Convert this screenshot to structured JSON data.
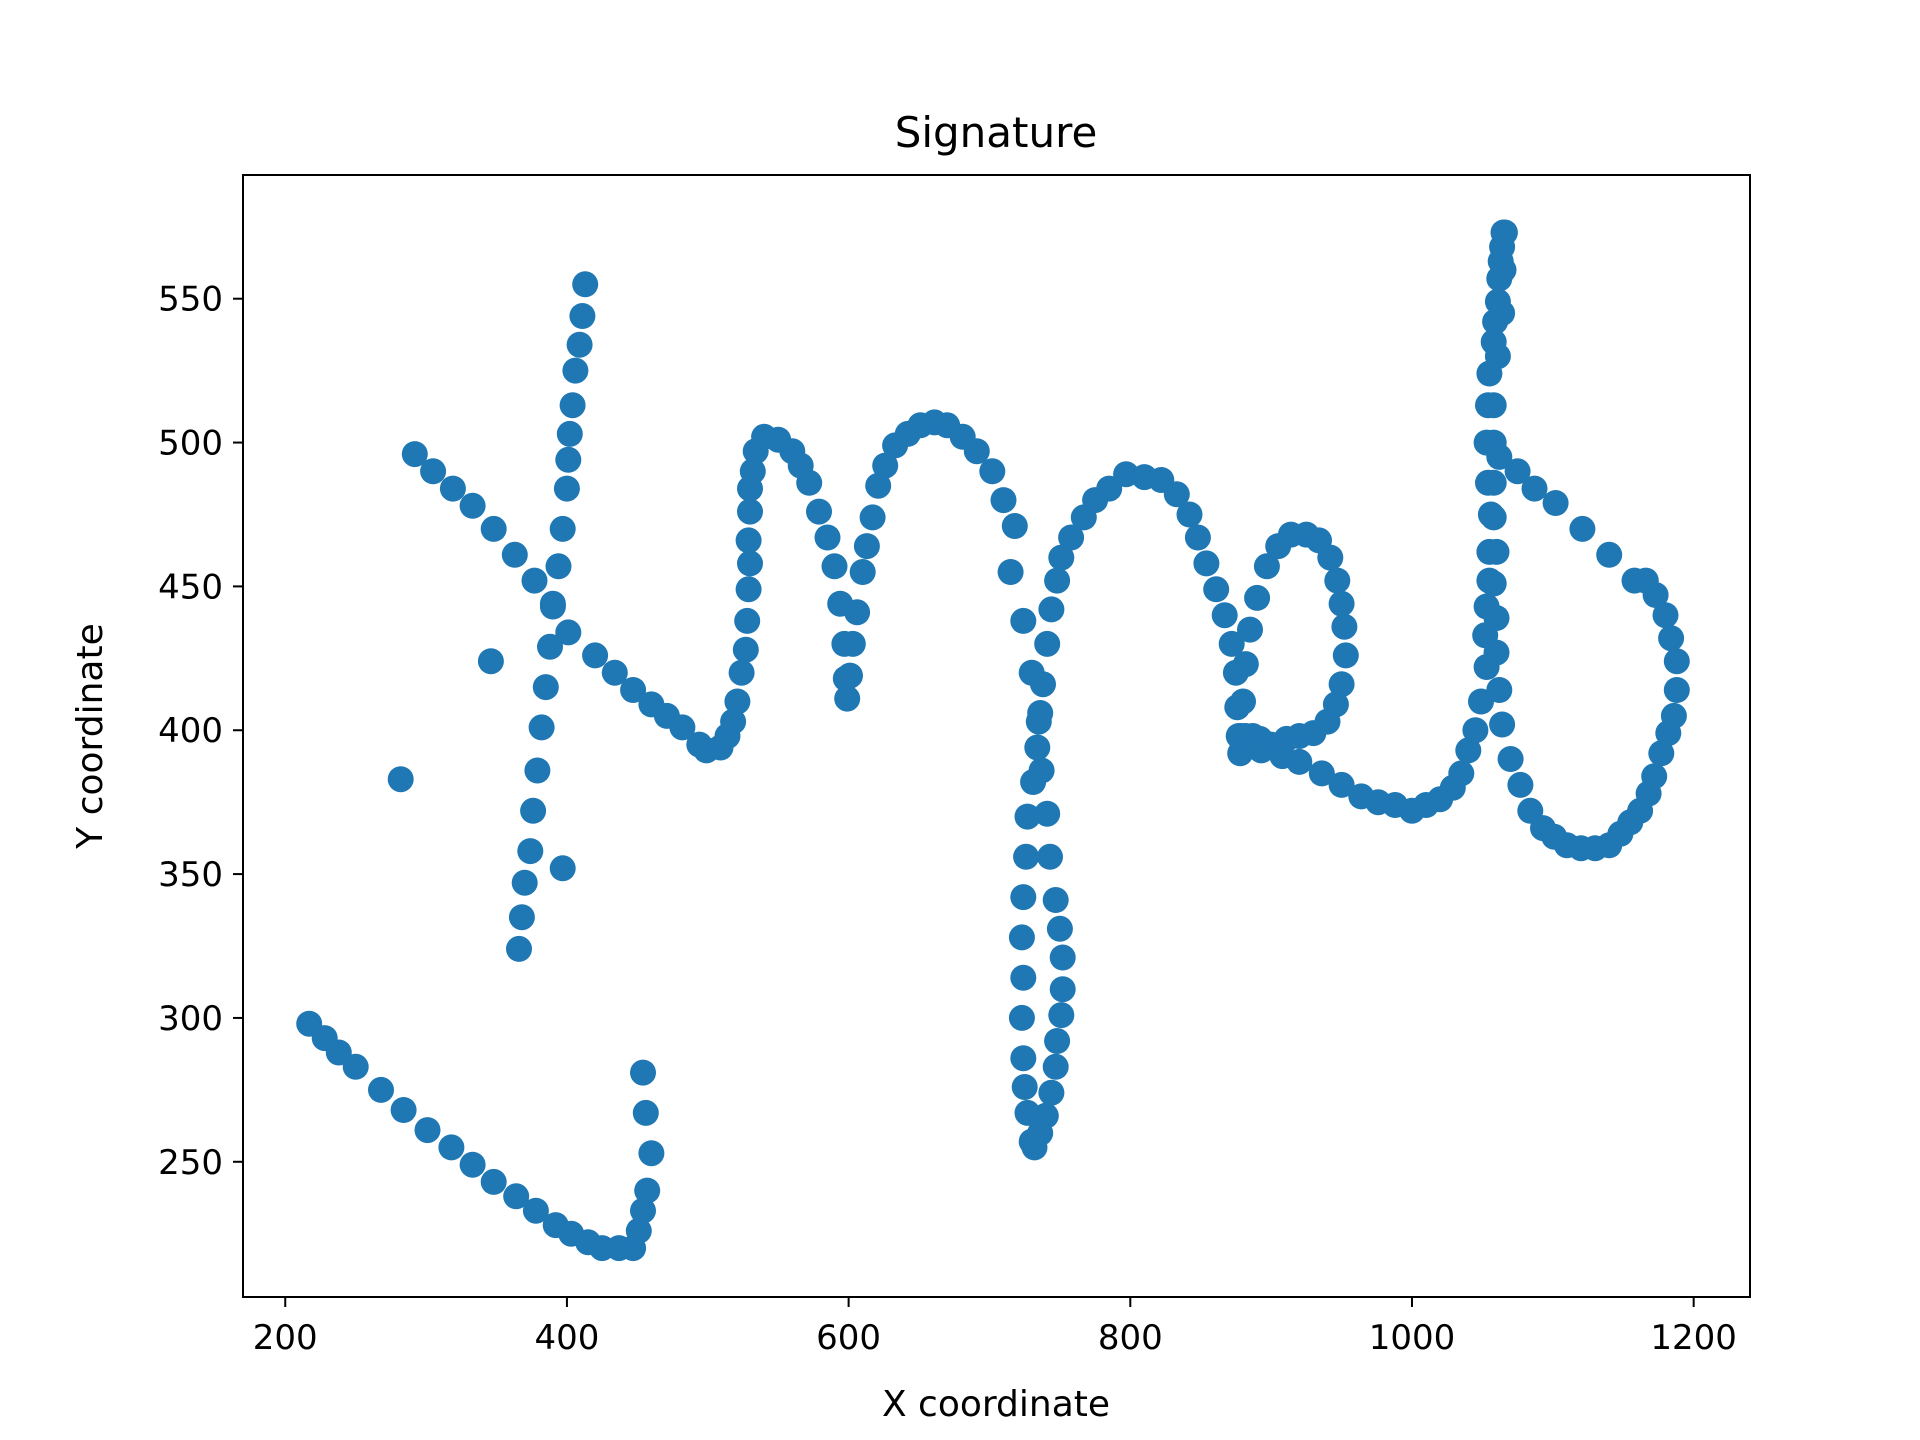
{
  "chart_data": {
    "type": "scatter",
    "title": "Signature",
    "xlabel": "X coordinate",
    "ylabel": "Y coordinate",
    "xlim": [
      170,
      1240
    ],
    "ylim": [
      203,
      593
    ],
    "xticks": [
      200,
      400,
      600,
      800,
      1000,
      1200
    ],
    "yticks": [
      250,
      300,
      350,
      400,
      450,
      500,
      550
    ],
    "grid": false,
    "legend": "none",
    "marker_color": "#1f77b4",
    "series": [
      {
        "values": [
          [
            217,
            298
          ],
          [
            228,
            293
          ],
          [
            238,
            288
          ],
          [
            250,
            283
          ],
          [
            268,
            275
          ],
          [
            284,
            268
          ],
          [
            301,
            261
          ],
          [
            318,
            255
          ],
          [
            333,
            249
          ],
          [
            348,
            243
          ],
          [
            364,
            238
          ],
          [
            378,
            233
          ],
          [
            392,
            228
          ],
          [
            403,
            225
          ],
          [
            415,
            222
          ],
          [
            425,
            220
          ],
          [
            437,
            220
          ],
          [
            447,
            220
          ],
          [
            451,
            226
          ],
          [
            454,
            233
          ],
          [
            457,
            240
          ],
          [
            460,
            253
          ],
          [
            456,
            267
          ],
          [
            454,
            281
          ],
          [
            292,
            496
          ],
          [
            305,
            490
          ],
          [
            319,
            484
          ],
          [
            333,
            478
          ],
          [
            348,
            470
          ],
          [
            363,
            461
          ],
          [
            377,
            452
          ],
          [
            390,
            444
          ],
          [
            401,
            434
          ],
          [
            420,
            426
          ],
          [
            434,
            420
          ],
          [
            447,
            414
          ],
          [
            460,
            409
          ],
          [
            471,
            405
          ],
          [
            482,
            401
          ],
          [
            494,
            395
          ],
          [
            499,
            393
          ],
          [
            509,
            394
          ],
          [
            514,
            398
          ],
          [
            518,
            403
          ],
          [
            521,
            410
          ],
          [
            524,
            420
          ],
          [
            527,
            428
          ],
          [
            528,
            438
          ],
          [
            529,
            449
          ],
          [
            530,
            458
          ],
          [
            529,
            466
          ],
          [
            530,
            476
          ],
          [
            530,
            484
          ],
          [
            532,
            490
          ],
          [
            534,
            497
          ],
          [
            540,
            502
          ],
          [
            550,
            501
          ],
          [
            560,
            497
          ],
          [
            566,
            492
          ],
          [
            572,
            486
          ],
          [
            579,
            476
          ],
          [
            585,
            467
          ],
          [
            590,
            457
          ],
          [
            594,
            444
          ],
          [
            597,
            430
          ],
          [
            598,
            418
          ],
          [
            599,
            411
          ],
          [
            601,
            419
          ],
          [
            603,
            430
          ],
          [
            606,
            441
          ],
          [
            610,
            455
          ],
          [
            613,
            464
          ],
          [
            617,
            474
          ],
          [
            621,
            485
          ],
          [
            626,
            492
          ],
          [
            633,
            499
          ],
          [
            642,
            503
          ],
          [
            651,
            506
          ],
          [
            661,
            507
          ],
          [
            670,
            506
          ],
          [
            681,
            502
          ],
          [
            691,
            497
          ],
          [
            702,
            490
          ],
          [
            710,
            480
          ],
          [
            718,
            471
          ],
          [
            715,
            455
          ],
          [
            724,
            438
          ],
          [
            730,
            420
          ],
          [
            735,
            403
          ],
          [
            737,
            386
          ],
          [
            741,
            371
          ],
          [
            743,
            356
          ],
          [
            747,
            341
          ],
          [
            750,
            331
          ],
          [
            752,
            321
          ],
          [
            752,
            310
          ],
          [
            751,
            301
          ],
          [
            748,
            292
          ],
          [
            747,
            283
          ],
          [
            744,
            274
          ],
          [
            740,
            266
          ],
          [
            736,
            260
          ],
          [
            732,
            255
          ],
          [
            730,
            257
          ],
          [
            727,
            267
          ],
          [
            725,
            276
          ],
          [
            724,
            286
          ],
          [
            723,
            300
          ],
          [
            724,
            314
          ],
          [
            723,
            328
          ],
          [
            724,
            342
          ],
          [
            726,
            356
          ],
          [
            727,
            370
          ],
          [
            731,
            382
          ],
          [
            734,
            394
          ],
          [
            736,
            406
          ],
          [
            738,
            416
          ],
          [
            741,
            430
          ],
          [
            744,
            442
          ],
          [
            748,
            452
          ],
          [
            751,
            460
          ],
          [
            758,
            467
          ],
          [
            767,
            474
          ],
          [
            775,
            480
          ],
          [
            785,
            484
          ],
          [
            797,
            489
          ],
          [
            810,
            488
          ],
          [
            822,
            487
          ],
          [
            833,
            482
          ],
          [
            842,
            475
          ],
          [
            848,
            467
          ],
          [
            854,
            458
          ],
          [
            861,
            449
          ],
          [
            867,
            440
          ],
          [
            872,
            430
          ],
          [
            875,
            420
          ],
          [
            876,
            408
          ],
          [
            877,
            398
          ],
          [
            878,
            392
          ],
          [
            879,
            398
          ],
          [
            880,
            410
          ],
          [
            882,
            423
          ],
          [
            885,
            435
          ],
          [
            890,
            446
          ],
          [
            897,
            457
          ],
          [
            905,
            464
          ],
          [
            914,
            468
          ],
          [
            925,
            468
          ],
          [
            934,
            466
          ],
          [
            942,
            460
          ],
          [
            947,
            452
          ],
          [
            950,
            444
          ],
          [
            952,
            436
          ],
          [
            953,
            426
          ],
          [
            950,
            416
          ],
          [
            946,
            409
          ],
          [
            940,
            403
          ],
          [
            930,
            399
          ],
          [
            920,
            398
          ],
          [
            911,
            397
          ],
          [
            900,
            395
          ],
          [
            892,
            397
          ],
          [
            887,
            398
          ],
          [
            882,
            398
          ],
          [
            883,
            395
          ],
          [
            893,
            393
          ],
          [
            908,
            391
          ],
          [
            920,
            389
          ],
          [
            936,
            385
          ],
          [
            950,
            381
          ],
          [
            964,
            377
          ],
          [
            976,
            375
          ],
          [
            988,
            374
          ],
          [
            1000,
            372
          ],
          [
            1010,
            374
          ],
          [
            1020,
            376
          ],
          [
            1029,
            380
          ],
          [
            1035,
            385
          ],
          [
            1040,
            393
          ],
          [
            1045,
            400
          ],
          [
            1049,
            410
          ],
          [
            1053,
            422
          ],
          [
            1052,
            433
          ],
          [
            1053,
            443
          ],
          [
            1055,
            452
          ],
          [
            1055,
            462
          ],
          [
            1056,
            475
          ],
          [
            1054,
            486
          ],
          [
            1053,
            500
          ],
          [
            1054,
            513
          ],
          [
            1055,
            524
          ],
          [
            1058,
            535
          ],
          [
            1059,
            542
          ],
          [
            1061,
            549
          ],
          [
            1062,
            557
          ],
          [
            1063,
            563
          ],
          [
            1064,
            568
          ],
          [
            1065,
            573
          ],
          [
            1062,
            414
          ],
          [
            1060,
            427
          ],
          [
            1060,
            439
          ],
          [
            1058,
            451
          ],
          [
            1060,
            462
          ],
          [
            1058,
            474
          ],
          [
            1058,
            486
          ],
          [
            1058,
            500
          ],
          [
            1058,
            513
          ],
          [
            1061,
            530
          ],
          [
            1064,
            545
          ],
          [
            1065,
            560
          ],
          [
            1066,
            573
          ],
          [
            1064,
            402
          ],
          [
            1070,
            390
          ],
          [
            1077,
            381
          ],
          [
            1084,
            372
          ],
          [
            1093,
            366
          ],
          [
            1101,
            363
          ],
          [
            1110,
            360
          ],
          [
            1120,
            359
          ],
          [
            1130,
            359
          ],
          [
            1140,
            360
          ],
          [
            1148,
            364
          ],
          [
            1155,
            368
          ],
          [
            1162,
            372
          ],
          [
            1168,
            378
          ],
          [
            1172,
            384
          ],
          [
            1177,
            392
          ],
          [
            1182,
            399
          ],
          [
            1186,
            405
          ],
          [
            1188,
            414
          ],
          [
            1188,
            424
          ],
          [
            1184,
            432
          ],
          [
            1180,
            440
          ],
          [
            1173,
            447
          ],
          [
            1166,
            452
          ],
          [
            1158,
            452
          ],
          [
            1140,
            461
          ],
          [
            1121,
            470
          ],
          [
            1102,
            479
          ],
          [
            1087,
            484
          ],
          [
            1075,
            490
          ],
          [
            1062,
            495
          ],
          [
            413,
            555
          ],
          [
            411,
            544
          ],
          [
            409,
            534
          ],
          [
            406,
            525
          ],
          [
            404,
            513
          ],
          [
            402,
            503
          ],
          [
            401,
            494
          ],
          [
            400,
            484
          ],
          [
            397,
            470
          ],
          [
            394,
            457
          ],
          [
            390,
            443
          ],
          [
            388,
            429
          ],
          [
            385,
            415
          ],
          [
            382,
            401
          ],
          [
            379,
            386
          ],
          [
            376,
            372
          ],
          [
            374,
            358
          ],
          [
            370,
            347
          ],
          [
            368,
            335
          ],
          [
            366,
            324
          ],
          [
            397,
            352
          ],
          [
            346,
            424
          ],
          [
            282,
            383
          ]
        ]
      }
    ]
  }
}
